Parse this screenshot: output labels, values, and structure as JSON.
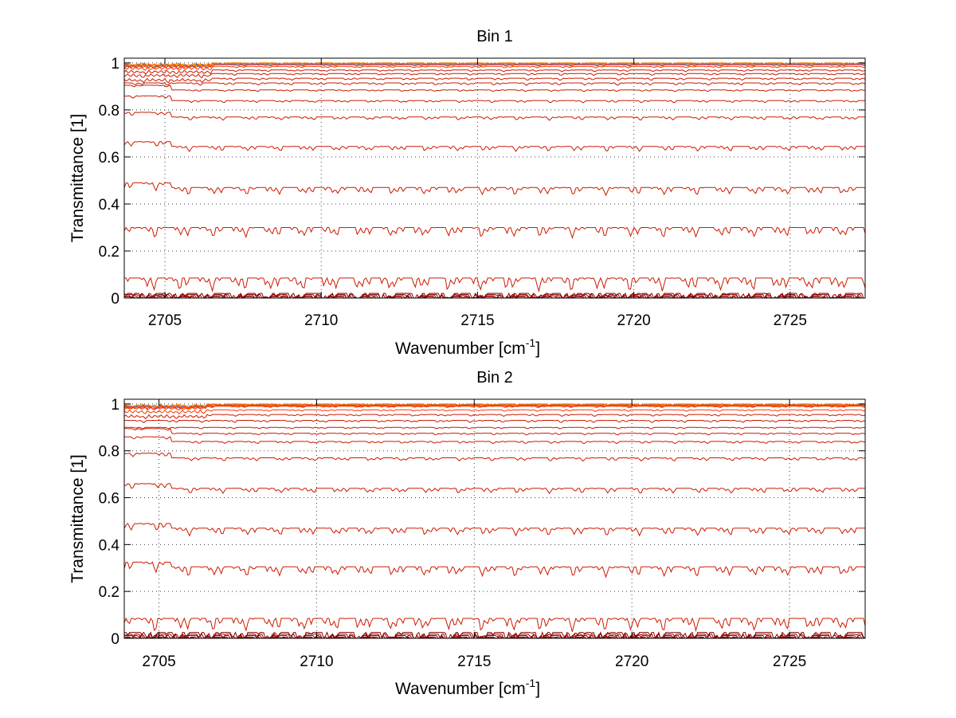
{
  "chart_data": [
    {
      "type": "line",
      "title": "Bin 1",
      "xlabel": "Wavenumber [cm",
      "xlabel_sup": "-1",
      "xlabel_end": "]",
      "ylabel": "Transmittance [1]",
      "xlim": [
        2703.7,
        2727.4
      ],
      "ylim": [
        0,
        1.02
      ],
      "xticks": [
        2705,
        2710,
        2715,
        2720,
        2725
      ],
      "xticklabels": [
        "2705",
        "2710",
        "2715",
        "2720",
        "2725"
      ],
      "yticks": [
        0,
        0.2,
        0.4,
        0.6,
        0.8,
        1
      ],
      "yticklabels": [
        "0",
        "0.2",
        "0.4",
        "0.6",
        "0.8",
        "1"
      ],
      "grid": true,
      "series_levels": [
        1.0,
        0.999,
        0.998,
        0.996,
        0.995,
        0.992,
        0.985,
        0.97,
        0.955,
        0.935,
        0.915,
        0.885,
        0.84,
        0.77,
        0.645,
        0.47,
        0.3,
        0.085,
        0.02,
        0.015,
        0.01,
        0.005
      ]
    },
    {
      "type": "line",
      "title": "Bin 2",
      "xlabel": "Wavenumber [cm",
      "xlabel_sup": "-1",
      "xlabel_end": "]",
      "ylabel": "Transmittance [1]",
      "xlim": [
        2703.9,
        2727.4
      ],
      "ylim": [
        0,
        1.02
      ],
      "xticks": [
        2705,
        2710,
        2715,
        2720,
        2725
      ],
      "xticklabels": [
        "2705",
        "2710",
        "2715",
        "2720",
        "2725"
      ],
      "yticks": [
        0,
        0.2,
        0.4,
        0.6,
        0.8,
        1
      ],
      "yticklabels": [
        "0",
        "0.2",
        "0.4",
        "0.6",
        "0.8",
        "1"
      ],
      "grid": true,
      "series_levels": [
        1.0,
        0.999,
        0.997,
        0.995,
        0.993,
        0.99,
        0.975,
        0.955,
        0.93,
        0.9,
        0.875,
        0.84,
        0.77,
        0.64,
        0.47,
        0.305,
        0.085,
        0.025,
        0.018,
        0.012,
        0.006,
        0.002
      ]
    }
  ]
}
